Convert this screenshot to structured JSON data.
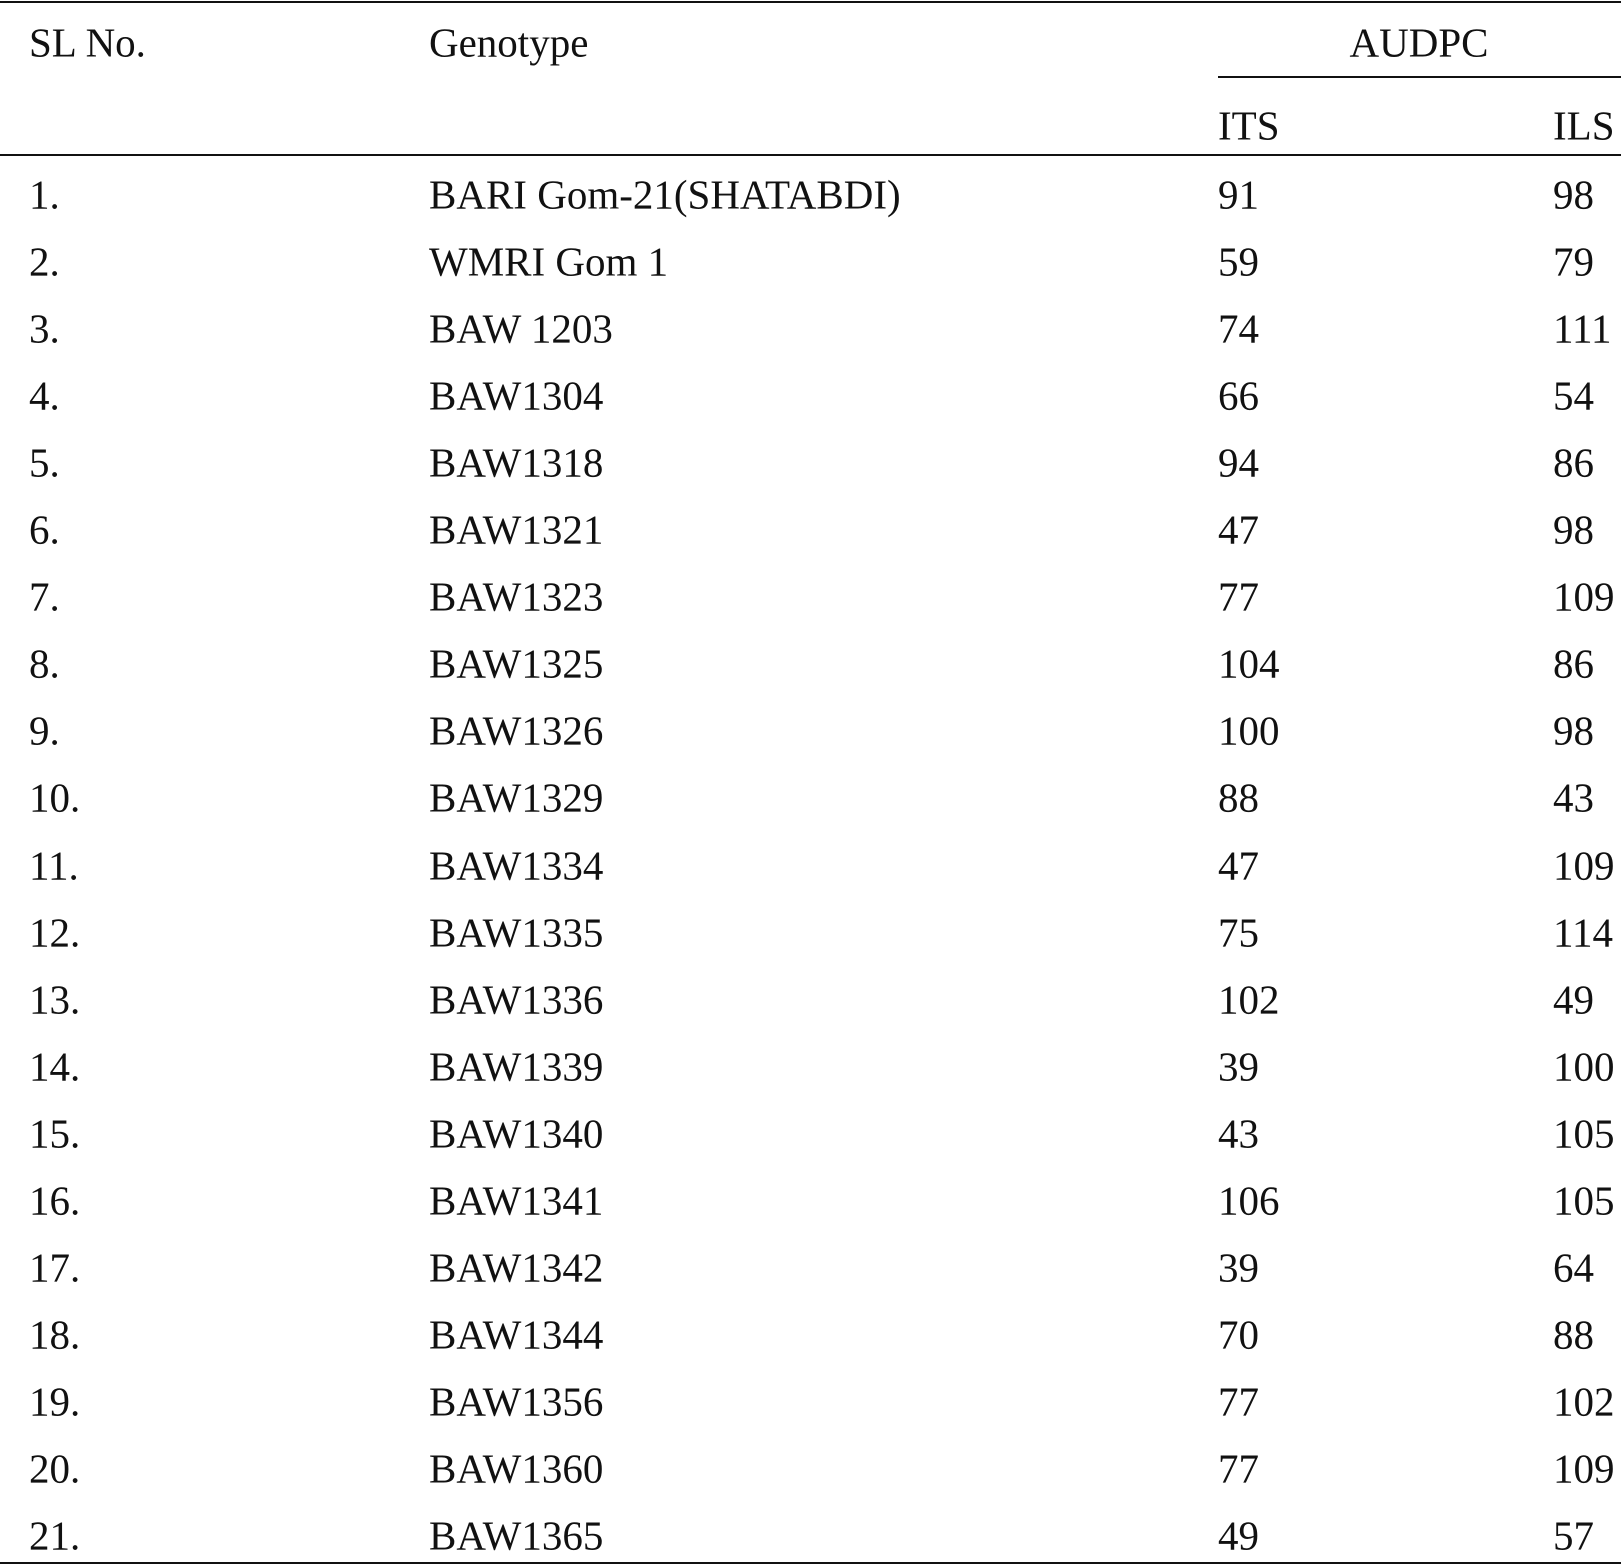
{
  "table": {
    "header": [
      "SL No.",
      "Genotype",
      "AUDPC"
    ],
    "subheader": [
      "ITS",
      "ILS"
    ],
    "rows": [
      [
        "1.",
        "BARI Gom-21(SHATABDI)",
        91,
        98
      ],
      [
        "2.",
        "WMRI Gom 1",
        59,
        79
      ],
      [
        "3.",
        "BAW 1203",
        74,
        111
      ],
      [
        "4.",
        "BAW1304",
        66,
        54
      ],
      [
        "5.",
        "BAW1318",
        94,
        86
      ],
      [
        "6.",
        "BAW1321",
        47,
        98
      ],
      [
        "7.",
        "BAW1323",
        77,
        109
      ],
      [
        "8.",
        "BAW1325",
        104,
        86
      ],
      [
        "9.",
        "BAW1326",
        100,
        98
      ],
      [
        "10.",
        "BAW1329",
        88,
        43
      ],
      [
        "11.",
        "BAW1334",
        47,
        109
      ],
      [
        "12.",
        "BAW1335",
        75,
        114
      ],
      [
        "13.",
        "BAW1336",
        102,
        49
      ],
      [
        "14.",
        "BAW1339",
        39,
        100
      ],
      [
        "15.",
        "BAW1340",
        43,
        105
      ],
      [
        "16.",
        "BAW1341",
        106,
        105
      ],
      [
        "17.",
        "BAW1342",
        39,
        64
      ],
      [
        "18.",
        "BAW1344",
        70,
        88
      ],
      [
        "19.",
        "BAW1356",
        77,
        102
      ],
      [
        "20.",
        "BAW1360",
        77,
        109
      ],
      [
        "21.",
        "BAW1365",
        49,
        57
      ]
    ]
  }
}
